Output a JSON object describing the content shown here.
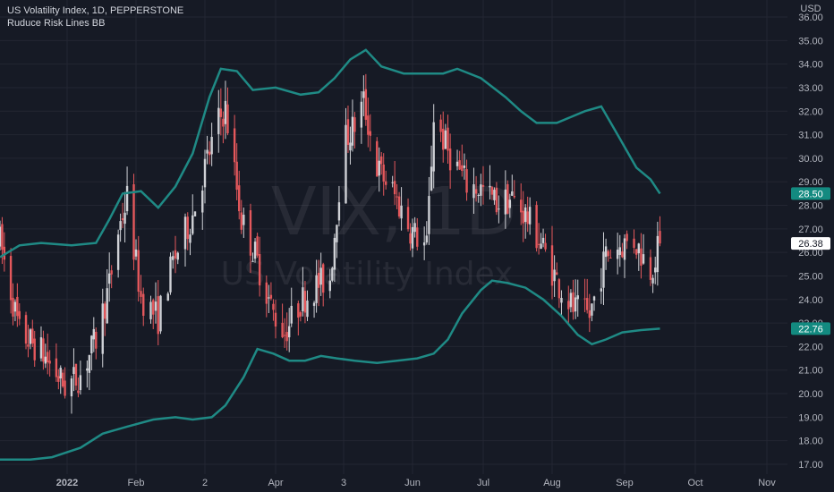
{
  "header": {
    "title": "US Volatility Index, 1D, PEPPERSTONE",
    "indicator": "Ruduce Risk Lines BB",
    "currency": "USD"
  },
  "watermark": {
    "symbol": "VIX, 1D",
    "name": "US Volatility Index"
  },
  "colors": {
    "background": "#161a25",
    "grid": "#232632",
    "band": "#1f8a85",
    "up": "#cfd1d6",
    "down": "#e4585c",
    "price_tag_bg": "#ffffff",
    "band_tag_bg": "#138a80"
  },
  "price_tags": {
    "last": "26.38",
    "upper": "28.50",
    "lower": "22.76"
  },
  "chart_data": {
    "type": "candlestick",
    "title": "US Volatility Index, 1D, PEPPERSTONE",
    "ylim": [
      17.0,
      36.0
    ],
    "y_ticks": [
      "36.00",
      "35.00",
      "34.00",
      "33.00",
      "32.00",
      "31.00",
      "30.00",
      "29.00",
      "28.00",
      "27.00",
      "26.00",
      "25.00",
      "24.00",
      "23.00",
      "22.00",
      "21.00",
      "20.00",
      "19.00",
      "18.00",
      "17.00"
    ],
    "x_tick_labels": [
      "2022",
      "Feb",
      "2",
      "Apr",
      "3",
      "Jun",
      "Jul",
      "Aug",
      "Sep",
      "Oct",
      "Nov"
    ],
    "x_tick_dates": [
      "2022-01-01",
      "2022-02-01",
      "2022-03-01",
      "2022-04-01",
      "2022-05-01",
      "2022-06-01",
      "2022-07-01",
      "2022-08-01",
      "2022-09-01",
      "2022-10-01",
      "2022-11-01"
    ],
    "x_tick_bold": [
      "2022"
    ],
    "date_range": [
      "2021-12-01",
      "2022-11-25"
    ],
    "series": [
      {
        "name": "US Volatility Index",
        "kind": "candles",
        "close_path": [
          [
            "2021-12-01",
            26.5
          ],
          [
            "2021-12-10",
            22.6
          ],
          [
            "2021-12-20",
            21.8
          ],
          [
            "2021-12-31",
            20.3
          ],
          [
            "2022-01-07",
            20.8
          ],
          [
            "2022-01-14",
            22.3
          ],
          [
            "2022-01-20",
            24.6
          ],
          [
            "2022-01-24",
            26.9
          ],
          [
            "2022-01-28",
            28.3
          ],
          [
            "2022-02-03",
            24.1
          ],
          [
            "2022-02-10",
            23.2
          ],
          [
            "2022-02-16",
            25.6
          ],
          [
            "2022-02-24",
            27.6
          ],
          [
            "2022-03-01",
            29.6
          ],
          [
            "2022-03-07",
            31.6
          ],
          [
            "2022-03-10",
            32.1
          ],
          [
            "2022-03-17",
            27.4
          ],
          [
            "2022-03-23",
            25.9
          ],
          [
            "2022-03-31",
            23.4
          ],
          [
            "2022-04-05",
            22.6
          ],
          [
            "2022-04-12",
            23.9
          ],
          [
            "2022-04-19",
            24.6
          ],
          [
            "2022-04-25",
            24.9
          ],
          [
            "2022-05-01",
            30.7
          ],
          [
            "2022-05-06",
            31.4
          ],
          [
            "2022-05-10",
            32.4
          ],
          [
            "2022-05-16",
            29.6
          ],
          [
            "2022-05-23",
            28.6
          ],
          [
            "2022-05-31",
            27.0
          ],
          [
            "2022-06-07",
            26.2
          ],
          [
            "2022-06-10",
            31.8
          ],
          [
            "2022-06-16",
            30.3
          ],
          [
            "2022-06-24",
            28.9
          ],
          [
            "2022-06-30",
            28.7
          ],
          [
            "2022-07-07",
            28.1
          ],
          [
            "2022-07-14",
            28.3
          ],
          [
            "2022-07-20",
            27.6
          ],
          [
            "2022-07-27",
            26.4
          ],
          [
            "2022-08-03",
            24.8
          ],
          [
            "2022-08-10",
            23.6
          ],
          [
            "2022-08-17",
            23.3
          ],
          [
            "2022-08-24",
            25.9
          ],
          [
            "2022-08-30",
            26.3
          ],
          [
            "2022-09-05",
            26.5
          ],
          [
            "2022-09-12",
            25.3
          ],
          [
            "2022-09-16",
            26.38
          ]
        ]
      },
      {
        "name": "Upper band",
        "points": [
          [
            "2021-12-01",
            25.8
          ],
          [
            "2021-12-10",
            26.3
          ],
          [
            "2021-12-20",
            26.4
          ],
          [
            "2022-01-03",
            26.3
          ],
          [
            "2022-01-14",
            26.4
          ],
          [
            "2022-01-20",
            27.4
          ],
          [
            "2022-01-26",
            28.5
          ],
          [
            "2022-02-03",
            28.6
          ],
          [
            "2022-02-10",
            27.9
          ],
          [
            "2022-02-17",
            28.8
          ],
          [
            "2022-02-24",
            30.2
          ],
          [
            "2022-03-03",
            32.6
          ],
          [
            "2022-03-08",
            33.8
          ],
          [
            "2022-03-15",
            33.7
          ],
          [
            "2022-03-22",
            32.9
          ],
          [
            "2022-04-01",
            33.0
          ],
          [
            "2022-04-12",
            32.7
          ],
          [
            "2022-04-20",
            32.8
          ],
          [
            "2022-04-27",
            33.4
          ],
          [
            "2022-05-04",
            34.2
          ],
          [
            "2022-05-11",
            34.6
          ],
          [
            "2022-05-18",
            33.9
          ],
          [
            "2022-05-28",
            33.6
          ],
          [
            "2022-06-08",
            33.6
          ],
          [
            "2022-06-14",
            33.6
          ],
          [
            "2022-06-20",
            33.8
          ],
          [
            "2022-06-30",
            33.4
          ],
          [
            "2022-07-11",
            32.6
          ],
          [
            "2022-07-18",
            32.0
          ],
          [
            "2022-07-25",
            31.5
          ],
          [
            "2022-08-03",
            31.5
          ],
          [
            "2022-08-15",
            32.0
          ],
          [
            "2022-08-22",
            32.2
          ],
          [
            "2022-08-29",
            31.0
          ],
          [
            "2022-09-06",
            29.6
          ],
          [
            "2022-09-12",
            29.1
          ],
          [
            "2022-09-16",
            28.5
          ]
        ]
      },
      {
        "name": "Lower band",
        "points": [
          [
            "2021-12-01",
            17.2
          ],
          [
            "2021-12-15",
            17.2
          ],
          [
            "2021-12-25",
            17.3
          ],
          [
            "2022-01-07",
            17.7
          ],
          [
            "2022-01-17",
            18.3
          ],
          [
            "2022-01-28",
            18.6
          ],
          [
            "2022-02-08",
            18.9
          ],
          [
            "2022-02-17",
            19.0
          ],
          [
            "2022-02-24",
            18.9
          ],
          [
            "2022-03-04",
            19.0
          ],
          [
            "2022-03-10",
            19.5
          ],
          [
            "2022-03-18",
            20.7
          ],
          [
            "2022-03-24",
            21.9
          ],
          [
            "2022-03-31",
            21.7
          ],
          [
            "2022-04-07",
            21.4
          ],
          [
            "2022-04-14",
            21.4
          ],
          [
            "2022-04-21",
            21.6
          ],
          [
            "2022-04-28",
            21.5
          ],
          [
            "2022-05-06",
            21.4
          ],
          [
            "2022-05-16",
            21.3
          ],
          [
            "2022-05-25",
            21.4
          ],
          [
            "2022-06-03",
            21.5
          ],
          [
            "2022-06-10",
            21.7
          ],
          [
            "2022-06-16",
            22.3
          ],
          [
            "2022-06-22",
            23.4
          ],
          [
            "2022-06-30",
            24.4
          ],
          [
            "2022-07-05",
            24.8
          ],
          [
            "2022-07-12",
            24.7
          ],
          [
            "2022-07-20",
            24.5
          ],
          [
            "2022-07-28",
            24.0
          ],
          [
            "2022-08-05",
            23.3
          ],
          [
            "2022-08-12",
            22.5
          ],
          [
            "2022-08-18",
            22.1
          ],
          [
            "2022-08-24",
            22.3
          ],
          [
            "2022-08-31",
            22.6
          ],
          [
            "2022-09-08",
            22.7
          ],
          [
            "2022-09-16",
            22.76
          ]
        ]
      }
    ],
    "last_value": 26.38,
    "grid": true
  }
}
